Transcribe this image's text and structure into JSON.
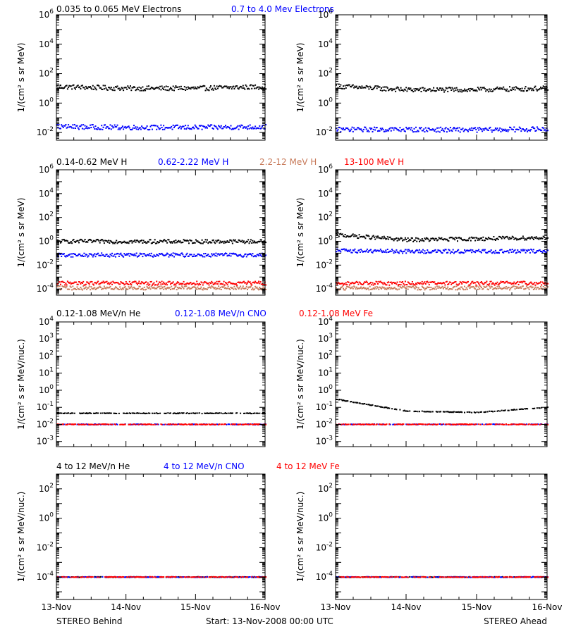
{
  "colors": {
    "black": "#000000",
    "blue": "#0000ff",
    "salmon": "#c77a5a",
    "red": "#ff0000"
  },
  "x_tick_labels": [
    "13-Nov",
    "14-Nov",
    "15-Nov",
    "16-Nov"
  ],
  "footer": {
    "left": "STEREO Behind",
    "center": "Start: 13-Nov-2008 00:00 UTC",
    "right": "STEREO Ahead"
  },
  "rows": [
    {
      "legend": [
        {
          "text": "0.035 to 0.065 MeV Electrons",
          "color": "#000000"
        },
        {
          "text": "0.7 to 4.0 Mev Electrons",
          "color": "#0000ff"
        }
      ]
    },
    {
      "legend": [
        {
          "text": "0.14-0.62 MeV H",
          "color": "#000000"
        },
        {
          "text": "0.62-2.22 MeV H",
          "color": "#0000ff"
        },
        {
          "text": "2.2-12 MeV H",
          "color": "#c77a5a"
        },
        {
          "text": "13-100 MeV H",
          "color": "#ff0000"
        }
      ]
    },
    {
      "legend": [
        {
          "text": "0.12-1.08 MeV/n He",
          "color": "#000000"
        },
        {
          "text": "0.12-1.08 MeV/n CNO",
          "color": "#0000ff"
        },
        {
          "text": "0.12-1.08 MeV Fe",
          "color": "#ff0000"
        }
      ]
    },
    {
      "legend": [
        {
          "text": "4 to 12 MeV/n He",
          "color": "#000000"
        },
        {
          "text": "4 to 12 MeV/n CNO",
          "color": "#0000ff"
        },
        {
          "text": "4 to 12 MeV Fe",
          "color": "#ff0000"
        }
      ]
    }
  ],
  "chart_data": [
    {
      "type": "scatter",
      "row": 0,
      "col": 0,
      "spacecraft": "STEREO Behind",
      "ylabel": "1/(cm² s sr MeV)",
      "yscale": "log",
      "ylim": [
        0.003,
        1000000
      ],
      "yticks": [
        {
          "exp": -2
        },
        {
          "exp": 0
        },
        {
          "exp": 2
        },
        {
          "exp": 4
        },
        {
          "exp": 6
        }
      ],
      "x": [
        "13-Nov",
        "14-Nov",
        "15-Nov",
        "16-Nov"
      ],
      "series": [
        {
          "color": "#000000",
          "values": [
            13,
            10,
            10,
            13
          ]
        },
        {
          "color": "#0000ff",
          "values": [
            0.025,
            0.022,
            0.022,
            0.024
          ]
        }
      ]
    },
    {
      "type": "scatter",
      "row": 0,
      "col": 1,
      "spacecraft": "STEREO Ahead",
      "ylabel": "1/(cm² s sr MeV)",
      "yscale": "log",
      "ylim": [
        0.003,
        1000000
      ],
      "yticks": [
        {
          "exp": -2
        },
        {
          "exp": 0
        },
        {
          "exp": 2
        },
        {
          "exp": 4
        },
        {
          "exp": 6
        }
      ],
      "x": [
        "13-Nov",
        "14-Nov",
        "15-Nov",
        "16-Nov"
      ],
      "series": [
        {
          "color": "#000000",
          "values": [
            14,
            8,
            8,
            10
          ]
        },
        {
          "color": "#0000ff",
          "values": [
            0.016,
            0.016,
            0.015,
            0.017
          ]
        }
      ]
    },
    {
      "type": "scatter",
      "row": 1,
      "col": 0,
      "spacecraft": "STEREO Behind",
      "ylabel": "1/(cm² s sr MeV)",
      "yscale": "log",
      "ylim": [
        3e-05,
        1000000
      ],
      "yticks": [
        {
          "exp": -4
        },
        {
          "exp": -2
        },
        {
          "exp": 0
        },
        {
          "exp": 2
        },
        {
          "exp": 4
        },
        {
          "exp": 6
        }
      ],
      "x": [
        "13-Nov",
        "14-Nov",
        "15-Nov",
        "16-Nov"
      ],
      "series": [
        {
          "color": "#000000",
          "values": [
            1.0,
            0.95,
            0.95,
            0.95
          ]
        },
        {
          "color": "#0000ff",
          "values": [
            0.07,
            0.07,
            0.07,
            0.07
          ]
        },
        {
          "color": "#c77a5a",
          "values": [
            0.00012,
            0.00012,
            0.00012,
            0.00012
          ]
        },
        {
          "color": "#ff0000",
          "values": [
            0.0003,
            0.0003,
            0.0003,
            0.0003
          ]
        }
      ]
    },
    {
      "type": "scatter",
      "row": 1,
      "col": 1,
      "spacecraft": "STEREO Ahead",
      "ylabel": "1/(cm² s sr MeV)",
      "yscale": "log",
      "ylim": [
        3e-05,
        1000000
      ],
      "yticks": [
        {
          "exp": -4
        },
        {
          "exp": -2
        },
        {
          "exp": 0
        },
        {
          "exp": 2
        },
        {
          "exp": 4
        },
        {
          "exp": 6
        }
      ],
      "x": [
        "13-Nov",
        "14-Nov",
        "15-Nov",
        "16-Nov"
      ],
      "series": [
        {
          "color": "#000000",
          "values": [
            3.5,
            1.3,
            1.6,
            2.0
          ]
        },
        {
          "color": "#0000ff",
          "values": [
            0.16,
            0.14,
            0.14,
            0.15
          ]
        },
        {
          "color": "#c77a5a",
          "values": [
            0.00012,
            0.00012,
            0.00012,
            0.00012
          ]
        },
        {
          "color": "#ff0000",
          "values": [
            0.0003,
            0.0003,
            0.0003,
            0.0003
          ]
        }
      ]
    },
    {
      "type": "scatter",
      "row": 2,
      "col": 0,
      "spacecraft": "STEREO Behind",
      "ylabel": "1/(cm² s sr MeV/nuc.)",
      "yscale": "log",
      "ylim": [
        0.0005,
        10000
      ],
      "yticks": [
        {
          "exp": -3
        },
        {
          "exp": -2
        },
        {
          "exp": -1
        },
        {
          "exp": 0
        },
        {
          "exp": 1
        },
        {
          "exp": 2
        },
        {
          "exp": 3
        },
        {
          "exp": 4
        }
      ],
      "x": [
        "13-Nov",
        "14-Nov",
        "15-Nov",
        "16-Nov"
      ],
      "series": [
        {
          "color": "#000000",
          "values": [
            0.045,
            0.045,
            0.045,
            0.045
          ]
        },
        {
          "color": "#0000ff",
          "values": [
            0.01,
            0.01,
            0.01,
            0.01
          ]
        },
        {
          "color": "#ff0000",
          "values": [
            0.01,
            0.01,
            0.01,
            0.01
          ]
        }
      ]
    },
    {
      "type": "scatter",
      "row": 2,
      "col": 1,
      "spacecraft": "STEREO Ahead",
      "ylabel": "1/(cm² s sr MeV/nuc.)",
      "yscale": "log",
      "ylim": [
        0.0005,
        10000
      ],
      "yticks": [
        {
          "exp": -3
        },
        {
          "exp": -2
        },
        {
          "exp": -1
        },
        {
          "exp": 0
        },
        {
          "exp": 1
        },
        {
          "exp": 2
        },
        {
          "exp": 3
        },
        {
          "exp": 4
        }
      ],
      "x": [
        "13-Nov",
        "14-Nov",
        "15-Nov",
        "16-Nov"
      ],
      "series": [
        {
          "color": "#000000",
          "values": [
            0.3,
            0.06,
            0.05,
            0.1
          ]
        },
        {
          "color": "#0000ff",
          "values": [
            0.01,
            0.01,
            0.01,
            0.01
          ]
        },
        {
          "color": "#ff0000",
          "values": [
            0.01,
            0.01,
            0.01,
            0.01
          ]
        }
      ]
    },
    {
      "type": "scatter",
      "row": 3,
      "col": 0,
      "spacecraft": "STEREO Behind",
      "ylabel": "1/(cm² s sr MeV/nuc.)",
      "yscale": "log",
      "ylim": [
        3e-06,
        1000
      ],
      "yticks": [
        {
          "exp": -4
        },
        {
          "exp": -2
        },
        {
          "exp": 0
        },
        {
          "exp": 2
        }
      ],
      "x": [
        "13-Nov",
        "14-Nov",
        "15-Nov",
        "16-Nov"
      ],
      "series": [
        {
          "color": "#000000",
          "values": [
            0.0001,
            0.0001,
            0.0001,
            0.0001
          ]
        },
        {
          "color": "#0000ff",
          "values": [
            0.0001,
            0.0001,
            0.0001,
            0.0001
          ]
        },
        {
          "color": "#ff0000",
          "values": [
            0.0001,
            0.0001,
            0.0001,
            0.0001
          ]
        }
      ]
    },
    {
      "type": "scatter",
      "row": 3,
      "col": 1,
      "spacecraft": "STEREO Ahead",
      "ylabel": "1/(cm² s sr MeV/nuc.)",
      "yscale": "log",
      "ylim": [
        3e-06,
        1000
      ],
      "yticks": [
        {
          "exp": -4
        },
        {
          "exp": -2
        },
        {
          "exp": 0
        },
        {
          "exp": 2
        }
      ],
      "x": [
        "13-Nov",
        "14-Nov",
        "15-Nov",
        "16-Nov"
      ],
      "series": [
        {
          "color": "#000000",
          "values": [
            0.0001,
            0.0001,
            0.0001,
            0.0001
          ]
        },
        {
          "color": "#0000ff",
          "values": [
            0.0001,
            0.0001,
            0.0001,
            0.0001
          ]
        },
        {
          "color": "#ff0000",
          "values": [
            0.0001,
            0.0001,
            0.0001,
            0.0001
          ]
        }
      ]
    }
  ]
}
